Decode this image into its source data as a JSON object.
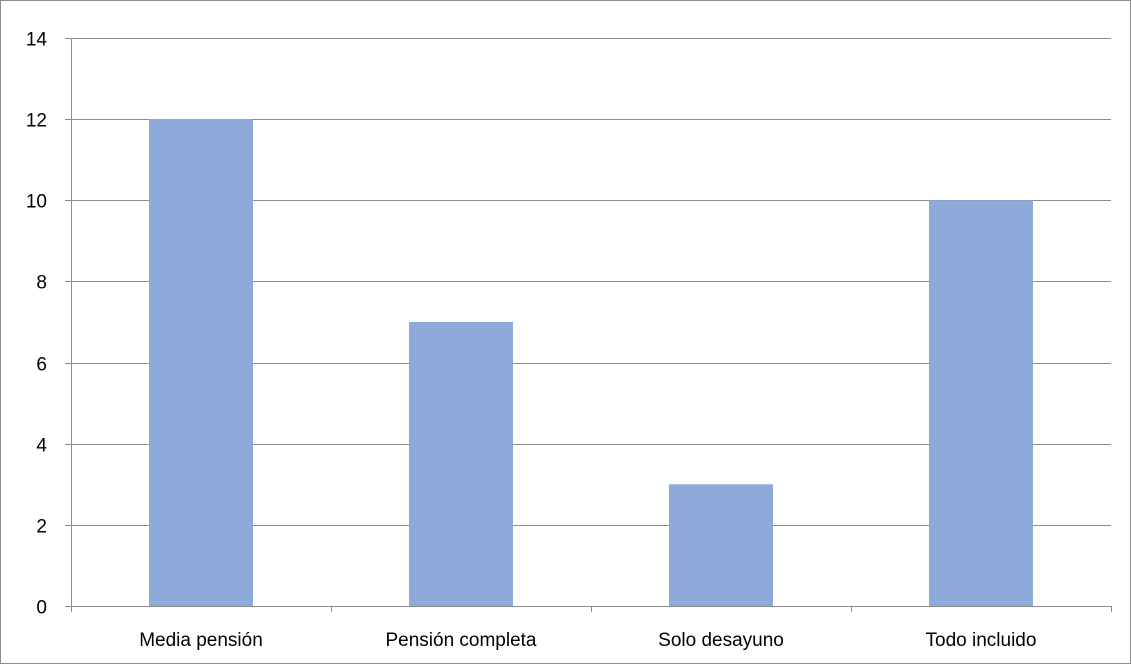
{
  "chart_data": {
    "type": "bar",
    "categories": [
      "Media pensión",
      "Pensión completa",
      "Solo desayuno",
      "Todo incluido"
    ],
    "values": [
      12,
      7,
      3,
      10
    ],
    "title": "",
    "xlabel": "",
    "ylabel": "",
    "ylim": [
      0,
      14
    ],
    "yticks": [
      0,
      2,
      4,
      6,
      8,
      10,
      12,
      14
    ],
    "grid": "horizontal",
    "legend": "none",
    "bar_color": "#8eaadb",
    "grid_color": "#8c8c8c"
  }
}
